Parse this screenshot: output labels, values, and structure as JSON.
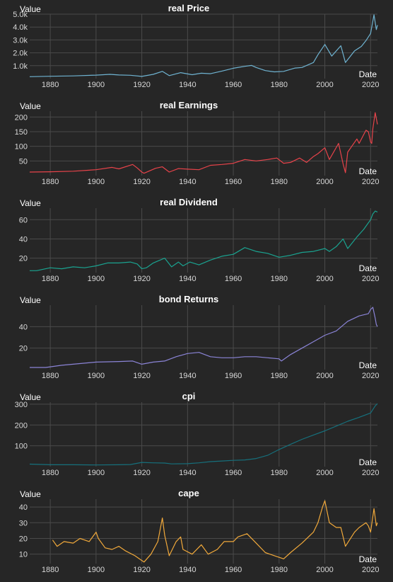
{
  "chart_data": [
    {
      "type": "line",
      "title": "real Price",
      "xlabel": "Date",
      "ylabel": "Value",
      "color": "#6fb3d1",
      "xlim": [
        1871,
        2023
      ],
      "ylim": [
        0,
        5000
      ],
      "x_ticks": [
        1880,
        1900,
        1920,
        1940,
        1960,
        1980,
        2000,
        2020
      ],
      "y_ticks": [
        1000,
        2000,
        3000,
        4000,
        5000
      ],
      "y_tick_labels": [
        "1.0k",
        "2.0k",
        "3.0k",
        "4.0k",
        "5.0k"
      ],
      "series": [
        {
          "x": [
            1871,
            1880,
            1890,
            1900,
            1906,
            1910,
            1915,
            1920,
            1925,
            1929,
            1932,
            1937,
            1942,
            1946,
            1950,
            1955,
            1960,
            1965,
            1968,
            1970,
            1974,
            1978,
            1982,
            1987,
            1990,
            1995,
            1997,
            2000,
            2003,
            2007,
            2009,
            2013,
            2016,
            2018,
            2020,
            2021.5,
            2022.5,
            2023
          ],
          "y": [
            150,
            180,
            210,
            270,
            330,
            280,
            260,
            170,
            330,
            560,
            230,
            460,
            300,
            420,
            380,
            580,
            800,
            950,
            1020,
            860,
            620,
            520,
            560,
            820,
            860,
            1250,
            1850,
            2650,
            1750,
            2550,
            1250,
            2150,
            2500,
            2950,
            3500,
            4950,
            3800,
            4150
          ]
        }
      ]
    },
    {
      "type": "line",
      "title": "real Earnings",
      "xlabel": "Date",
      "ylabel": "Value",
      "color": "#e8434a",
      "xlim": [
        1871,
        2023
      ],
      "ylim": [
        0,
        220
      ],
      "x_ticks": [
        1880,
        1900,
        1920,
        1940,
        1960,
        1980,
        2000,
        2020
      ],
      "y_ticks": [
        50,
        100,
        150,
        200
      ],
      "y_tick_labels": [
        "50",
        "100",
        "150",
        "200"
      ],
      "series": [
        {
          "x": [
            1871,
            1880,
            1890,
            1900,
            1907,
            1910,
            1916,
            1918,
            1920,
            1921,
            1926,
            1929,
            1932,
            1936,
            1940,
            1945,
            1950,
            1955,
            1960,
            1965,
            1970,
            1975,
            1979,
            1982,
            1985,
            1989,
            1992,
            1995,
            1997,
            2000,
            2002,
            2006,
            2008,
            2009,
            2010,
            2014,
            2015,
            2018,
            2019,
            2020,
            2020.5,
            2021,
            2022,
            2023
          ],
          "y": [
            12,
            13,
            15,
            20,
            28,
            23,
            38,
            26,
            12,
            8,
            25,
            30,
            12,
            24,
            22,
            20,
            35,
            38,
            42,
            55,
            50,
            55,
            60,
            42,
            45,
            60,
            45,
            65,
            75,
            95,
            55,
            110,
            40,
            10,
            80,
            125,
            110,
            155,
            150,
            115,
            110,
            160,
            215,
            175
          ]
        }
      ]
    },
    {
      "type": "line",
      "title": "real Dividend",
      "xlabel": "Date",
      "ylabel": "Value",
      "color": "#1aa390",
      "xlim": [
        1871,
        2023
      ],
      "ylim": [
        5,
        72
      ],
      "x_ticks": [
        1880,
        1900,
        1920,
        1940,
        1960,
        1980,
        2000,
        2020
      ],
      "y_ticks": [
        20,
        40,
        60
      ],
      "y_tick_labels": [
        "20",
        "40",
        "60"
      ],
      "series": [
        {
          "x": [
            1871,
            1874,
            1880,
            1885,
            1890,
            1895,
            1900,
            1905,
            1910,
            1915,
            1918,
            1920,
            1922,
            1925,
            1930,
            1933,
            1936,
            1938,
            1941,
            1945,
            1950,
            1955,
            1960,
            1965,
            1970,
            1975,
            1980,
            1985,
            1990,
            1995,
            2000,
            2002,
            2005,
            2008,
            2010,
            2014,
            2017,
            2020,
            2021,
            2022,
            2023
          ],
          "y": [
            7,
            7,
            10,
            9,
            11,
            10,
            12,
            15,
            15,
            16,
            14,
            9,
            10,
            15,
            20,
            11,
            16,
            12,
            16,
            13,
            18,
            22,
            24,
            31,
            27,
            25,
            21,
            23,
            26,
            27,
            30,
            27,
            32,
            40,
            30,
            42,
            50,
            60,
            66,
            69,
            68
          ]
        }
      ]
    },
    {
      "type": "line",
      "title": "bond Returns",
      "xlabel": "Date",
      "ylabel": "Value",
      "color": "#8b84d7",
      "xlim": [
        1871,
        2023
      ],
      "ylim": [
        0,
        60
      ],
      "x_ticks": [
        1880,
        1900,
        1920,
        1940,
        1960,
        1980,
        2000,
        2020
      ],
      "y_ticks": [
        20,
        40
      ],
      "y_tick_labels": [
        "20",
        "40"
      ],
      "series": [
        {
          "x": [
            1871,
            1878,
            1885,
            1890,
            1900,
            1910,
            1916,
            1920,
            1925,
            1930,
            1935,
            1940,
            1945,
            1950,
            1955,
            1960,
            1965,
            1970,
            1975,
            1980,
            1981,
            1985,
            1990,
            1995,
            2000,
            2005,
            2010,
            2015,
            2019,
            2020,
            2021,
            2022,
            2022.5,
            2023
          ],
          "y": [
            2,
            2,
            4,
            5,
            7,
            7.5,
            8,
            5,
            7,
            8,
            12,
            15,
            16,
            12,
            11,
            11,
            12,
            12,
            11,
            10,
            8,
            14,
            20,
            26,
            32,
            36,
            45,
            50,
            52,
            56,
            58,
            48,
            42,
            40
          ]
        }
      ]
    },
    {
      "type": "line",
      "title": "cpi",
      "xlabel": "Date",
      "ylabel": "Value",
      "color": "#16707c",
      "xlim": [
        1871,
        2023
      ],
      "ylim": [
        0,
        310
      ],
      "x_ticks": [
        1880,
        1900,
        1920,
        1940,
        1960,
        1980,
        2000,
        2020
      ],
      "y_ticks": [
        100,
        200,
        300
      ],
      "y_tick_labels": [
        "100",
        "200",
        "300"
      ],
      "series": [
        {
          "x": [
            1871,
            1880,
            1890,
            1900,
            1910,
            1915,
            1920,
            1925,
            1930,
            1933,
            1940,
            1945,
            1950,
            1955,
            1960,
            1965,
            1970,
            1975,
            1980,
            1985,
            1990,
            1995,
            2000,
            2005,
            2010,
            2015,
            2020,
            2022,
            2023
          ],
          "y": [
            12,
            9,
            9,
            8,
            9,
            10,
            20,
            18,
            17,
            13,
            14,
            18,
            24,
            27,
            30,
            32,
            39,
            54,
            82,
            107,
            131,
            152,
            172,
            195,
            218,
            237,
            258,
            292,
            303
          ]
        }
      ]
    },
    {
      "type": "line",
      "title": "cape",
      "xlabel": "Date",
      "ylabel": "Value",
      "color": "#f1a93b",
      "xlim": [
        1871,
        2023
      ],
      "ylim": [
        4,
        45
      ],
      "x_ticks": [
        1880,
        1900,
        1920,
        1940,
        1960,
        1980,
        2000,
        2020
      ],
      "y_ticks": [
        10,
        20,
        30,
        40
      ],
      "y_tick_labels": [
        "10",
        "20",
        "30",
        "40"
      ],
      "series": [
        {
          "x": [
            1881,
            1883,
            1886,
            1890,
            1893,
            1897,
            1900,
            1901,
            1904,
            1907,
            1910,
            1913,
            1917,
            1920,
            1921,
            1924,
            1927,
            1929,
            1930,
            1932,
            1935,
            1937,
            1938,
            1942,
            1946,
            1949,
            1953,
            1956,
            1960,
            1962,
            1966,
            1970,
            1974,
            1978,
            1982,
            1985,
            1990,
            1995,
            1997,
            1999,
            2000,
            2002,
            2005,
            2007,
            2009,
            2013,
            2015,
            2018,
            2019,
            2020,
            2021.5,
            2022.5,
            2023
          ],
          "y": [
            19,
            15,
            18,
            17,
            20,
            18,
            24,
            20,
            14,
            13,
            15,
            12,
            9,
            6,
            5,
            10,
            18,
            33,
            22,
            9,
            18,
            21,
            13,
            10,
            16,
            10,
            13,
            18,
            18,
            21,
            23,
            17,
            11,
            9,
            7,
            11,
            17,
            24,
            30,
            40,
            44,
            30,
            27,
            27,
            15,
            24,
            27,
            30,
            28,
            24,
            39,
            28,
            30
          ]
        }
      ]
    }
  ]
}
